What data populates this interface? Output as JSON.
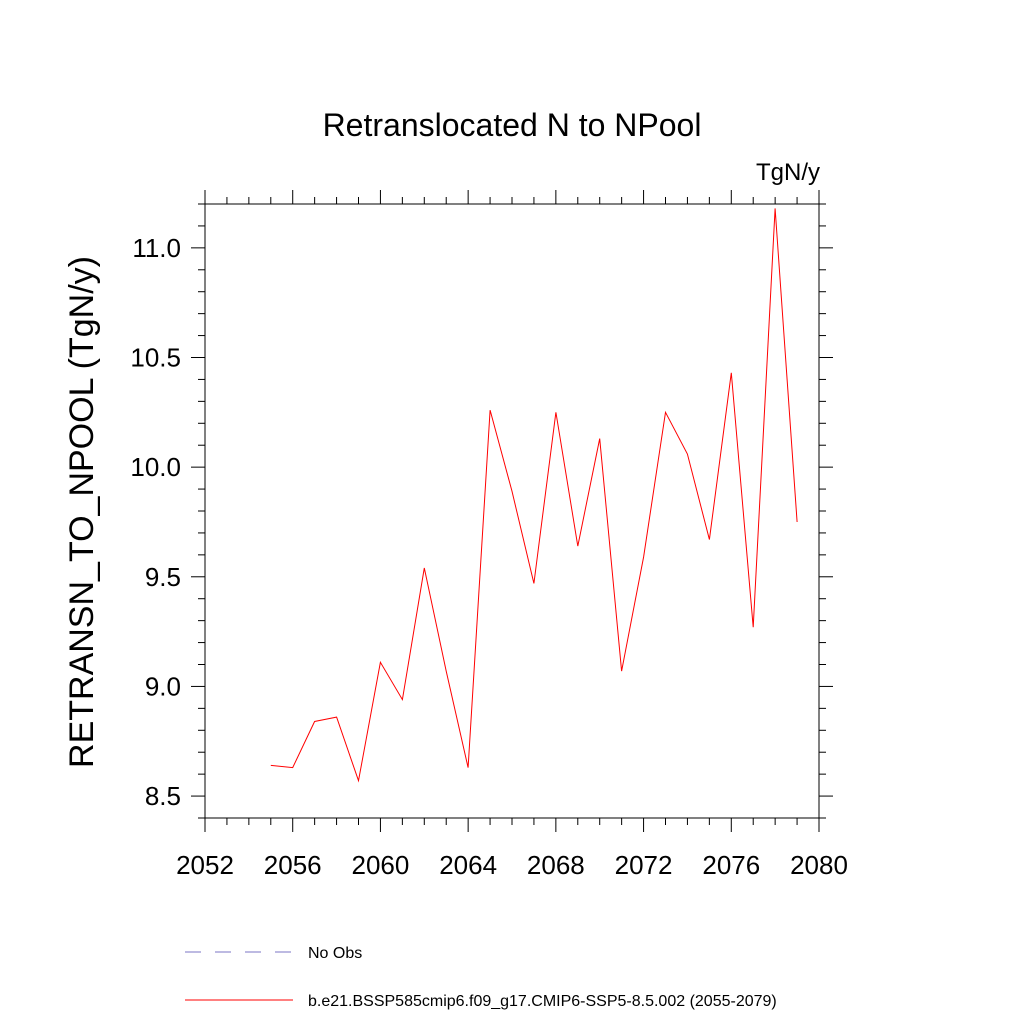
{
  "chart_data": {
    "type": "line",
    "title": "Retranslocated N to NPool",
    "units": "TgN/y",
    "xlabel": "",
    "ylabel": "RETRANSN_TO_NPOOL  (TgN/y)",
    "xlim": [
      2052,
      2080
    ],
    "ylim": [
      8.4,
      11.2
    ],
    "x_ticks": [
      2052,
      2056,
      2060,
      2064,
      2068,
      2072,
      2076,
      2080
    ],
    "y_ticks": [
      8.5,
      9.0,
      9.5,
      10.0,
      10.5,
      11.0
    ],
    "y_tick_labels": [
      "8.5",
      "9.0",
      "9.5",
      "10.0",
      "10.5",
      "11.0"
    ],
    "grid": false,
    "legend_position": "bottom",
    "series": [
      {
        "name": "No Obs",
        "style": "dashed",
        "color": "#7b74c4",
        "x": [],
        "values": []
      },
      {
        "name": "b.e21.BSSP585cmip6.f09_g17.CMIP6-SSP5-8.5.002 (2055-2079)",
        "style": "solid",
        "color": "#ff0000",
        "x": [
          2055,
          2056,
          2057,
          2058,
          2059,
          2060,
          2061,
          2062,
          2063,
          2064,
          2065,
          2066,
          2067,
          2068,
          2069,
          2070,
          2071,
          2072,
          2073,
          2074,
          2075,
          2076,
          2077,
          2078,
          2079
        ],
        "values": [
          8.64,
          8.63,
          8.84,
          8.86,
          8.57,
          9.11,
          8.94,
          9.54,
          9.07,
          8.63,
          10.26,
          9.89,
          9.47,
          10.25,
          9.64,
          10.13,
          9.07,
          9.59,
          10.25,
          10.06,
          9.67,
          10.43,
          9.27,
          11.18,
          9.75
        ]
      }
    ]
  }
}
